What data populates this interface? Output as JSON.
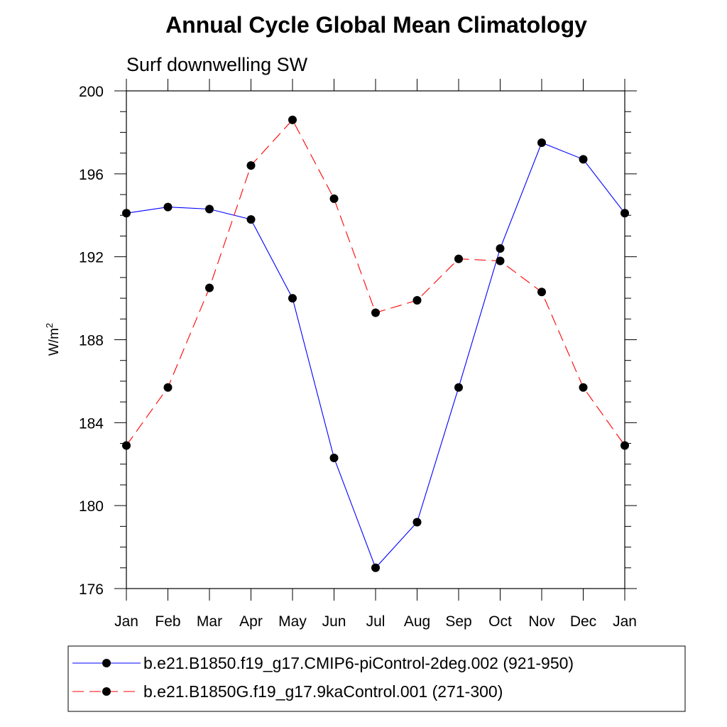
{
  "chart_data": {
    "type": "line",
    "title": "Annual Cycle Global Mean Climatology",
    "subtitle": "Surf downwelling SW",
    "ylabel": "W/m",
    "ylabel_superscript": "2",
    "xlabel": "",
    "categories": [
      "Jan",
      "Feb",
      "Mar",
      "Apr",
      "May",
      "Jun",
      "Jul",
      "Aug",
      "Sep",
      "Oct",
      "Nov",
      "Dec",
      "Jan"
    ],
    "ylim": [
      176,
      200
    ],
    "yticks": [
      176,
      180,
      184,
      188,
      192,
      196,
      200
    ],
    "series": [
      {
        "name": "b.e21.B1850.f19_g17.CMIP6-piControl-2deg.002 (921-950)",
        "color": "#0000ff",
        "dash": "solid",
        "values": [
          194.1,
          194.4,
          194.3,
          193.8,
          190.0,
          182.3,
          177.0,
          179.2,
          185.7,
          192.4,
          197.5,
          196.7,
          194.1
        ]
      },
      {
        "name": "b.e21.B1850G.f19_g17.9kaControl.001 (271-300)",
        "color": "#ff0000",
        "dash": "dashed",
        "values": [
          182.9,
          185.7,
          190.5,
          196.4,
          198.6,
          194.8,
          189.3,
          189.9,
          191.9,
          191.8,
          190.3,
          185.7,
          182.9
        ]
      }
    ]
  }
}
